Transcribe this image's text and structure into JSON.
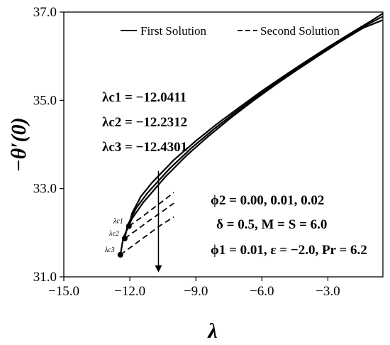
{
  "chart_data": {
    "type": "line",
    "xlabel": "λ",
    "ylabel": "−θ′(0)",
    "xlim": [
      -15.0,
      -0.5
    ],
    "ylim": [
      31.0,
      37.0
    ],
    "x_ticks": [
      "−15.0",
      "−12.0",
      "−9.0",
      "−6.0",
      "−3.0"
    ],
    "y_ticks": [
      "31.0",
      "33.0",
      "35.0",
      "37.0"
    ],
    "legend": {
      "position": "top",
      "entries": [
        "First Solution",
        "Second Solution"
      ]
    },
    "critical_values": [
      {
        "label": "λc1 = −12.0411",
        "marker_label": "λc1",
        "x": -12.0411,
        "y": 32.15
      },
      {
        "label": "λc2 = −12.2312",
        "marker_label": "λc2",
        "x": -12.2312,
        "y": 31.87
      },
      {
        "label": "λc3 = −12.4301",
        "marker_label": "λc3",
        "x": -12.4301,
        "y": 31.5
      }
    ],
    "series": [
      {
        "name": "First Solution",
        "style": "solid",
        "x": [
          -12.0411,
          -11.9,
          -11.5,
          -11.0,
          -10.0,
          -9.0,
          -8.0,
          -7.0,
          -6.0,
          -5.0,
          -4.0,
          -3.0,
          -2.0,
          -1.0,
          -0.5
        ],
        "y": [
          32.15,
          32.44,
          32.82,
          33.13,
          33.65,
          34.08,
          34.48,
          34.85,
          35.21,
          35.55,
          35.88,
          36.2,
          36.51,
          36.81,
          36.97
        ]
      },
      {
        "name": "First Solution",
        "style": "solid",
        "x": [
          -12.2312,
          -12.1,
          -11.7,
          -11.2,
          -10.2,
          -9.2,
          -8.2,
          -7.2,
          -6.2,
          -5.2,
          -4.2,
          -3.2,
          -2.2,
          -1.2,
          -0.5
        ],
        "y": [
          31.87,
          32.17,
          32.57,
          32.9,
          33.45,
          33.92,
          34.34,
          34.73,
          35.1,
          35.45,
          35.79,
          36.11,
          36.42,
          36.72,
          36.9
        ]
      },
      {
        "name": "First Solution",
        "style": "solid",
        "x": [
          -12.4301,
          -12.3,
          -11.9,
          -11.4,
          -10.4,
          -9.4,
          -8.4,
          -7.4,
          -6.4,
          -5.4,
          -4.4,
          -3.4,
          -2.4,
          -1.4,
          -0.5
        ],
        "y": [
          31.5,
          31.88,
          32.32,
          32.68,
          33.26,
          33.76,
          34.2,
          34.61,
          34.99,
          35.35,
          35.69,
          36.02,
          36.34,
          36.64,
          36.82
        ]
      },
      {
        "name": "Second Solution",
        "style": "dashed",
        "x": [
          -12.0411,
          -11.5,
          -11.0,
          -10.5,
          -10.0
        ],
        "y": [
          32.15,
          32.34,
          32.53,
          32.72,
          32.91
        ]
      },
      {
        "name": "Second Solution",
        "style": "dashed",
        "x": [
          -12.2312,
          -11.7,
          -11.1,
          -10.5,
          -10.0
        ],
        "y": [
          31.87,
          32.06,
          32.28,
          32.49,
          32.67
        ]
      },
      {
        "name": "Second Solution",
        "style": "dashed",
        "x": [
          -12.4301,
          -11.8,
          -11.2,
          -10.6,
          -10.0
        ],
        "y": [
          31.5,
          31.73,
          31.95,
          32.17,
          32.36
        ]
      }
    ],
    "annotations": {
      "critical": [
        "λc1 = −12.0411",
        "λc2 = −12.2312",
        "λc3 = −12.4301"
      ],
      "params": [
        "ϕ2 = 0.00, 0.01, 0.02",
        "δ = 0.5, M = S = 6.0",
        "ϕ1 = 0.01, ε = −2.0, Pr = 6.2"
      ]
    },
    "arrow": {
      "x": -10.7,
      "y_from": 33.4,
      "y_to": 31.1
    },
    "grid": false
  }
}
